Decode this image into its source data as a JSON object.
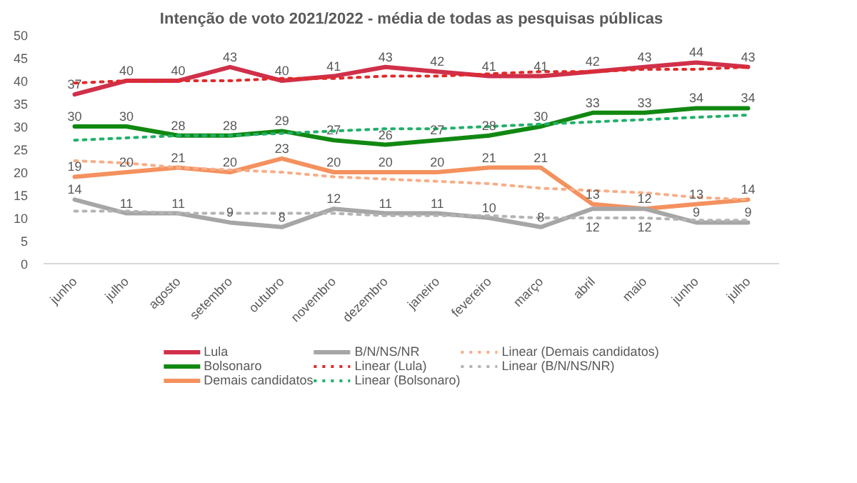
{
  "chart_data": {
    "type": "line",
    "title": "Intenção de voto 2021/2022 - média de todas as pesquisas públicas",
    "categories": [
      "junho",
      "julho",
      "agosto",
      "setembro",
      "outubro",
      "novembro",
      "dezembro",
      "janeiro",
      "fevereiro",
      "março",
      "abril",
      "maio",
      "junho",
      "julho"
    ],
    "ylim": [
      0,
      50
    ],
    "yticks": [
      0,
      5,
      10,
      15,
      20,
      25,
      30,
      35,
      40,
      45,
      50
    ],
    "grid": false,
    "legend": "bottom",
    "marker": "none",
    "series": [
      {
        "name": "Lula",
        "color": "#d0304a",
        "line_style": "solid",
        "data_labels": true,
        "values": [
          37,
          40,
          40,
          43,
          40,
          41,
          43,
          42,
          41,
          41,
          42,
          43,
          44,
          43
        ]
      },
      {
        "name": "Bolsonaro",
        "color": "#118811",
        "line_style": "solid",
        "data_labels": true,
        "values": [
          30,
          30,
          28,
          28,
          29,
          27,
          26,
          27,
          28,
          30,
          33,
          33,
          34,
          34
        ]
      },
      {
        "name": "Demais candidatos",
        "color": "#f4915e",
        "line_style": "solid",
        "data_labels": true,
        "values": [
          19,
          20,
          21,
          20,
          23,
          20,
          20,
          20,
          21,
          21,
          13,
          12,
          13,
          14
        ]
      },
      {
        "name": "B/N/NS/NR",
        "color": "#a6a6a6",
        "line_style": "solid",
        "data_labels": true,
        "values": [
          14,
          11,
          11,
          9,
          8,
          12,
          11,
          11,
          10,
          8,
          12,
          12,
          9,
          9
        ]
      },
      {
        "name": "Linear (Lula)",
        "color": "#e02a2a",
        "line_style": "dotted",
        "values": [
          39.5,
          40,
          40,
          40,
          40.5,
          40.5,
          41,
          41,
          41.5,
          42,
          42,
          42.5,
          42.5,
          43
        ]
      },
      {
        "name": "Linear (Bolsonaro)",
        "color": "#22b06a",
        "line_style": "dotted",
        "values": [
          27,
          27.5,
          28,
          28,
          28.5,
          29,
          29.5,
          29.5,
          30,
          30.5,
          31,
          31.5,
          32,
          32.5
        ]
      },
      {
        "name": "Linear (Demais candidatos)",
        "color": "#f7ae88",
        "line_style": "dotted",
        "values": [
          22.5,
          22,
          21,
          20.5,
          20,
          19,
          18.5,
          18,
          17.5,
          16.5,
          16,
          15.5,
          14.5,
          14
        ]
      },
      {
        "name": "Linear (B/N/NS/NR)",
        "color": "#b4b4b4",
        "line_style": "dotted",
        "values": [
          11.5,
          11.5,
          11,
          11,
          11,
          11,
          10.5,
          10.5,
          10.5,
          10,
          10,
          10,
          9.5,
          9.5
        ]
      }
    ]
  }
}
